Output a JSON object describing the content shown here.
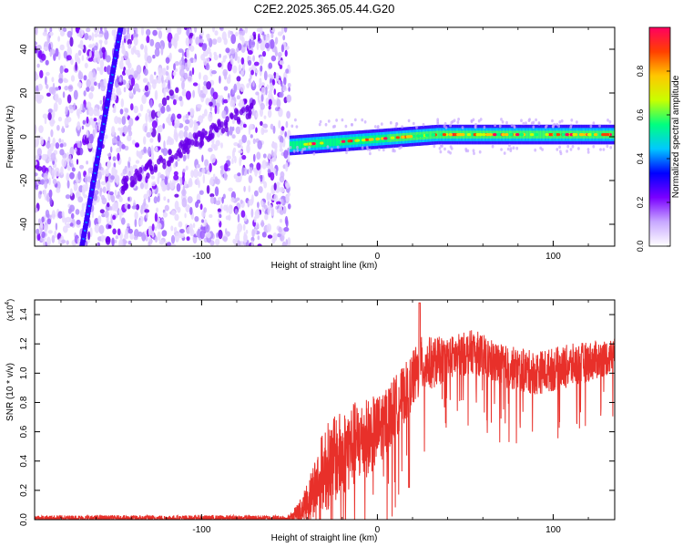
{
  "title": "C2E2.2025.365.05.44.G20",
  "chart_data": [
    {
      "type": "heatmap",
      "title": "C2E2.2025.365.05.44.G20",
      "xlabel": "Height of straight line (km)",
      "ylabel": "Frequency (Hz)",
      "xlim": [
        -195,
        135
      ],
      "ylim": [
        -50,
        50
      ],
      "xticks": [
        -100,
        0,
        100
      ],
      "yticks": [
        -40,
        -20,
        0,
        20,
        40
      ],
      "xtick_labels": [
        "-100",
        "0",
        "100"
      ],
      "ytick_labels": [
        "-40",
        "-20",
        "0",
        "20",
        "40"
      ],
      "noise_region_x": [
        -195,
        -50
      ],
      "track_x": [
        -50,
        135
      ],
      "track_y": [
        -4,
        1
      ],
      "streak": {
        "x_at_ymin": -168,
        "x_at_ymax": -146
      },
      "colorbar": {
        "label": "Normalized spectral amplitude",
        "range": [
          0,
          1
        ],
        "ticks": [
          0.0,
          0.2,
          0.4,
          0.6,
          0.8
        ],
        "tick_labels": [
          "0.0",
          "0.2",
          "0.4",
          "0.6",
          "0.8"
        ],
        "colormap": [
          "#ffffff",
          "#c8a8ff",
          "#7a00ff",
          "#0000ff",
          "#00c8ff",
          "#00ff80",
          "#c8ff00",
          "#ffc800",
          "#ff4000",
          "#ff0060"
        ]
      }
    },
    {
      "type": "line",
      "xlabel": "Height of straight line (km)",
      "ylabel": "SNR (10 * v/v)",
      "yscale_label": "(x10",
      "yscale_exp": "4",
      "yscale_close": ")",
      "xlim": [
        -195,
        135
      ],
      "ylim": [
        0,
        1.5
      ],
      "xticks": [
        -100,
        0,
        100
      ],
      "xtick_labels": [
        "-100",
        "0",
        "100"
      ],
      "yticks": [
        0.0,
        0.2,
        0.4,
        0.6,
        0.8,
        1.0,
        1.2,
        1.4
      ],
      "ytick_labels": [
        "0.0",
        "0.2",
        "0.4",
        "0.6",
        "0.8",
        "1.0",
        "1.2",
        "1.4"
      ],
      "color": "#e8302a",
      "envelope": [
        {
          "x": -195,
          "base": 0.01,
          "amp": 0.02
        },
        {
          "x": -50,
          "base": 0.01,
          "amp": 0.02
        },
        {
          "x": -42,
          "base": 0.08,
          "amp": 0.1
        },
        {
          "x": -30,
          "base": 0.35,
          "amp": 0.3
        },
        {
          "x": -15,
          "base": 0.5,
          "amp": 0.3
        },
        {
          "x": 0,
          "base": 0.6,
          "amp": 0.25
        },
        {
          "x": 15,
          "base": 0.85,
          "amp": 0.2
        },
        {
          "x": 25,
          "base": 1.05,
          "amp": 0.2
        },
        {
          "x": 40,
          "base": 1.1,
          "amp": 0.15
        },
        {
          "x": 55,
          "base": 1.15,
          "amp": 0.15
        },
        {
          "x": 70,
          "base": 1.05,
          "amp": 0.15
        },
        {
          "x": 90,
          "base": 1.0,
          "amp": 0.15
        },
        {
          "x": 110,
          "base": 1.05,
          "amp": 0.15
        },
        {
          "x": 135,
          "base": 1.12,
          "amp": 0.12
        }
      ]
    }
  ]
}
